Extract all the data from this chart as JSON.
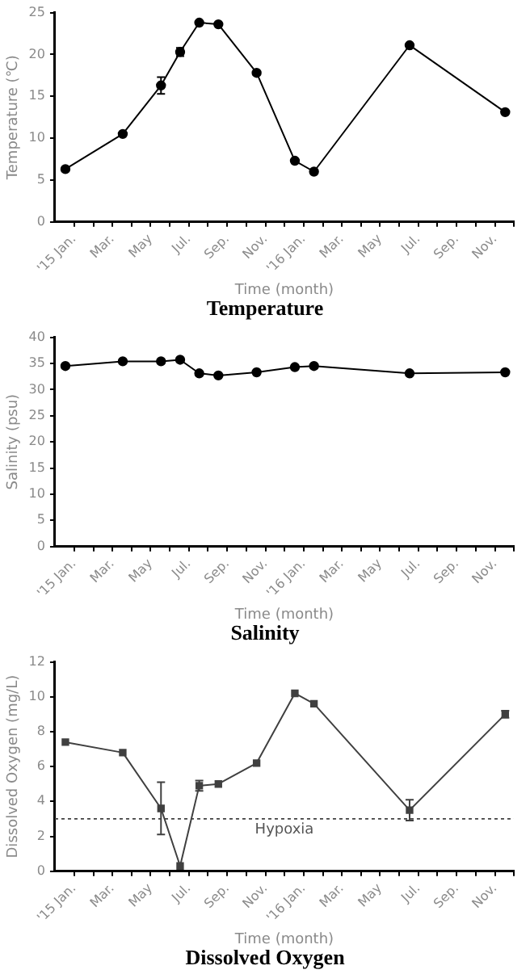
{
  "chart_data": [
    {
      "type": "line",
      "title": "Temperature",
      "xlabel": "Time (month)",
      "ylabel": "Temperature (℃)",
      "x": [
        "2015-01-01",
        "2015-04-01",
        "2015-06-01",
        "2015-07-01",
        "2015-08-01",
        "2015-09-01",
        "2015-11-01",
        "2016-01-01",
        "2016-02-01",
        "2016-07-01",
        "2016-12-01"
      ],
      "xlim": [
        "2014-12-15",
        "2016-12-15"
      ],
      "xticks": [
        {
          "value": "2015-01-15",
          "label": "'15 Jan."
        },
        {
          "value": "2015-02-15",
          "label": null
        },
        {
          "value": "2015-03-15",
          "label": "Mar."
        },
        {
          "value": "2015-04-15",
          "label": null
        },
        {
          "value": "2015-05-15",
          "label": "May"
        },
        {
          "value": "2015-06-15",
          "label": null
        },
        {
          "value": "2015-07-15",
          "label": "Jul."
        },
        {
          "value": "2015-08-15",
          "label": null
        },
        {
          "value": "2015-09-15",
          "label": "Sep."
        },
        {
          "value": "2015-10-15",
          "label": null
        },
        {
          "value": "2015-11-15",
          "label": "Nov."
        },
        {
          "value": "2015-12-15",
          "label": null
        },
        {
          "value": "2016-01-15",
          "label": "'16 Jan."
        },
        {
          "value": "2016-02-15",
          "label": null
        },
        {
          "value": "2016-03-15",
          "label": "Mar."
        },
        {
          "value": "2016-04-15",
          "label": null
        },
        {
          "value": "2016-05-15",
          "label": "May"
        },
        {
          "value": "2016-06-15",
          "label": null
        },
        {
          "value": "2016-07-15",
          "label": "Jul."
        },
        {
          "value": "2016-08-15",
          "label": null
        },
        {
          "value": "2016-09-15",
          "label": "Sep."
        },
        {
          "value": "2016-10-15",
          "label": null
        },
        {
          "value": "2016-11-15",
          "label": "Nov."
        },
        {
          "value": "2016-12-15",
          "label": null
        }
      ],
      "ylim": [
        0,
        25
      ],
      "yticks": [
        0,
        5,
        10,
        15,
        20,
        25
      ],
      "series": [
        {
          "color": "#000000",
          "values": [
            6.3,
            10.5,
            16.3,
            20.3,
            23.8,
            23.6,
            17.8,
            7.3,
            6.0,
            21.1,
            13.1
          ],
          "errors": [
            null,
            null,
            1.0,
            0.5,
            null,
            null,
            null,
            null,
            null,
            null,
            null
          ]
        }
      ],
      "marker": "circle",
      "grid": false,
      "legend": false
    },
    {
      "type": "line",
      "title": "Salinity",
      "xlabel": "Time (month)",
      "ylabel": "Salinity (psu)",
      "x": [
        "2015-01-01",
        "2015-04-01",
        "2015-06-01",
        "2015-07-01",
        "2015-08-01",
        "2015-09-01",
        "2015-11-01",
        "2016-01-01",
        "2016-02-01",
        "2016-07-01",
        "2016-12-01"
      ],
      "xlim": [
        "2014-12-15",
        "2016-12-15"
      ],
      "xticks": [
        {
          "value": "2015-01-15",
          "label": "'15 Jan."
        },
        {
          "value": "2015-02-15",
          "label": null
        },
        {
          "value": "2015-03-15",
          "label": "Mar."
        },
        {
          "value": "2015-04-15",
          "label": null
        },
        {
          "value": "2015-05-15",
          "label": "May"
        },
        {
          "value": "2015-06-15",
          "label": null
        },
        {
          "value": "2015-07-15",
          "label": "Jul."
        },
        {
          "value": "2015-08-15",
          "label": null
        },
        {
          "value": "2015-09-15",
          "label": "Sep."
        },
        {
          "value": "2015-10-15",
          "label": null
        },
        {
          "value": "2015-11-15",
          "label": "Nov."
        },
        {
          "value": "2015-12-15",
          "label": null
        },
        {
          "value": "2016-01-15",
          "label": "'16 Jan."
        },
        {
          "value": "2016-02-15",
          "label": null
        },
        {
          "value": "2016-03-15",
          "label": "Mar."
        },
        {
          "value": "2016-04-15",
          "label": null
        },
        {
          "value": "2016-05-15",
          "label": "May"
        },
        {
          "value": "2016-06-15",
          "label": null
        },
        {
          "value": "2016-07-15",
          "label": "Jul."
        },
        {
          "value": "2016-08-15",
          "label": null
        },
        {
          "value": "2016-09-15",
          "label": "Sep."
        },
        {
          "value": "2016-10-15",
          "label": null
        },
        {
          "value": "2016-11-15",
          "label": "Nov."
        },
        {
          "value": "2016-12-15",
          "label": null
        }
      ],
      "ylim": [
        0,
        40
      ],
      "yticks": [
        0,
        5,
        10,
        15,
        20,
        25,
        30,
        35,
        40
      ],
      "series": [
        {
          "color": "#000000",
          "values": [
            34.5,
            35.4,
            35.4,
            35.7,
            33.1,
            32.7,
            33.3,
            34.3,
            34.5,
            33.1,
            33.3
          ]
        }
      ],
      "marker": "circle",
      "grid": false,
      "legend": false
    },
    {
      "type": "line",
      "title": "Dissolved Oxygen",
      "xlabel": "Time (month)",
      "ylabel": "Dissolved Oxygen (mg/L)",
      "x": [
        "2015-01-01",
        "2015-04-01",
        "2015-06-01",
        "2015-07-01",
        "2015-08-01",
        "2015-09-01",
        "2015-11-01",
        "2016-01-01",
        "2016-02-01",
        "2016-07-01",
        "2016-12-01"
      ],
      "xlim": [
        "2014-12-15",
        "2016-12-15"
      ],
      "xticks": [
        {
          "value": "2015-01-15",
          "label": "'15 Jan."
        },
        {
          "value": "2015-02-15",
          "label": null
        },
        {
          "value": "2015-03-15",
          "label": "Mar."
        },
        {
          "value": "2015-04-15",
          "label": null
        },
        {
          "value": "2015-05-15",
          "label": "May"
        },
        {
          "value": "2015-06-15",
          "label": null
        },
        {
          "value": "2015-07-15",
          "label": "Jul."
        },
        {
          "value": "2015-08-15",
          "label": null
        },
        {
          "value": "2015-09-15",
          "label": "Sep."
        },
        {
          "value": "2015-10-15",
          "label": null
        },
        {
          "value": "2015-11-15",
          "label": "Nov."
        },
        {
          "value": "2015-12-15",
          "label": null
        },
        {
          "value": "2016-01-15",
          "label": "'16 Jan."
        },
        {
          "value": "2016-02-15",
          "label": null
        },
        {
          "value": "2016-03-15",
          "label": "Mar."
        },
        {
          "value": "2016-04-15",
          "label": null
        },
        {
          "value": "2016-05-15",
          "label": "May"
        },
        {
          "value": "2016-06-15",
          "label": null
        },
        {
          "value": "2016-07-15",
          "label": "Jul."
        },
        {
          "value": "2016-08-15",
          "label": null
        },
        {
          "value": "2016-09-15",
          "label": "Sep."
        },
        {
          "value": "2016-10-15",
          "label": null
        },
        {
          "value": "2016-11-15",
          "label": "Nov."
        },
        {
          "value": "2016-12-15",
          "label": null
        }
      ],
      "ylim": [
        0,
        12
      ],
      "yticks": [
        0,
        2,
        4,
        6,
        8,
        10,
        12
      ],
      "series": [
        {
          "color": "#404040",
          "values": [
            7.4,
            6.8,
            3.6,
            0.3,
            4.9,
            5.0,
            6.2,
            10.2,
            9.6,
            3.5,
            9.0
          ],
          "errors": [
            null,
            null,
            1.5,
            null,
            0.3,
            null,
            null,
            null,
            null,
            0.6,
            0.2
          ]
        }
      ],
      "ref_lines": [
        {
          "axis": "y",
          "value": 3,
          "label": "Hypoxia",
          "color": "#404040",
          "line_style": "dotted"
        }
      ],
      "marker": "square",
      "grid": false,
      "legend": false
    }
  ]
}
